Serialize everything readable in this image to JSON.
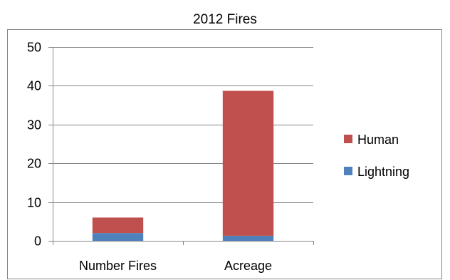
{
  "chart_data": {
    "type": "bar",
    "stacked": true,
    "title": "2012 Fires",
    "categories": [
      "Number Fires",
      "Acreage"
    ],
    "series": [
      {
        "name": "Lightning",
        "values": [
          2.0,
          1.3
        ],
        "color": "#4f81bd"
      },
      {
        "name": "Human",
        "values": [
          4.0,
          37.4
        ],
        "color": "#c0504d"
      }
    ],
    "ylim": [
      0,
      50
    ],
    "yticks": [
      "0",
      "10",
      "20",
      "30",
      "40",
      "50"
    ],
    "grid": true,
    "legend_position": "right"
  }
}
